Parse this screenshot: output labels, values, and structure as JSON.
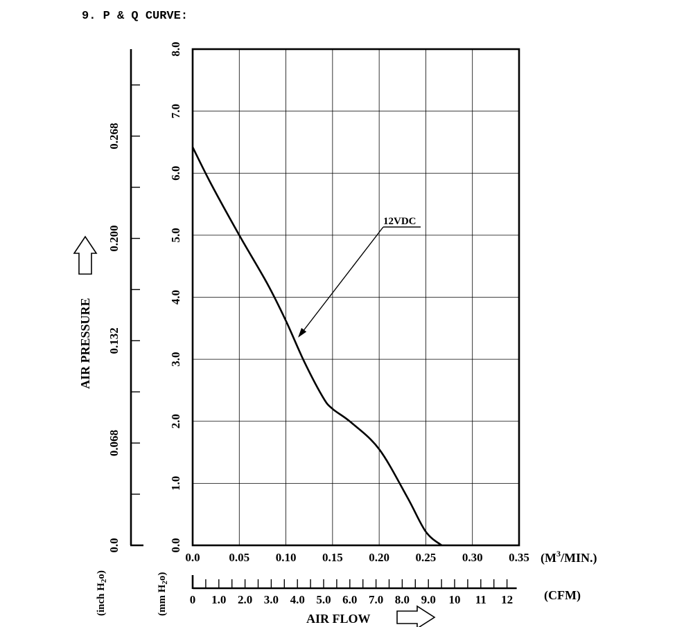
{
  "header": {
    "title": "9. P & Q CURVE:"
  },
  "chart_data": {
    "type": "line",
    "title": "9. P & Q CURVE:",
    "x_axis": {
      "label": "AIR FLOW",
      "unit_primary": "(M³/MIN.)",
      "unit_primary_main": "(M",
      "unit_primary_sup": "3",
      "unit_primary_tail": "/MIN.)",
      "range": [
        0,
        0.35
      ],
      "ticks": [
        "0.0",
        "0.05",
        "0.10",
        "0.15",
        "0.20",
        "0.25",
        "0.30",
        "0.35"
      ],
      "secondary_unit": "(CFM)",
      "secondary_ticks": [
        "0",
        "1.0",
        "2.0",
        "3.0",
        "4.0",
        "5.0",
        "6.0",
        "7.0",
        "8.0",
        "9.0",
        "10",
        "11",
        "12"
      ]
    },
    "y_axis": {
      "label": "AIR PRESSURE",
      "unit_primary": "(mm H₂o)",
      "unit_primary_main": "(mm H",
      "unit_primary_sub": "2",
      "unit_primary_tail": "o)",
      "range": [
        0,
        8
      ],
      "ticks": [
        "0.0",
        "1.0",
        "2.0",
        "3.0",
        "4.0",
        "5.0",
        "6.0",
        "7.0",
        "8.0"
      ],
      "secondary_unit": "(inch H₂o)",
      "secondary_unit_main": "(inch H",
      "secondary_unit_sub": "2",
      "secondary_unit_tail": "o)",
      "secondary_ticks": [
        "0.0",
        "0.068",
        "0.132",
        "0.200",
        "0.268"
      ]
    },
    "grid": true,
    "series": [
      {
        "name": "12VDC",
        "color": "#000000",
        "x": [
          0.0,
          0.02,
          0.05,
          0.08,
          0.1,
          0.12,
          0.14,
          0.15,
          0.17,
          0.2,
          0.23,
          0.25,
          0.267
        ],
        "y": [
          6.42,
          5.82,
          5.0,
          4.22,
          3.62,
          2.95,
          2.38,
          2.2,
          1.98,
          1.55,
          0.78,
          0.22,
          0.0
        ]
      }
    ],
    "annotations": [
      {
        "text": "12VDC",
        "points_to": {
          "x": 0.113,
          "y": 3.35
        }
      }
    ]
  }
}
